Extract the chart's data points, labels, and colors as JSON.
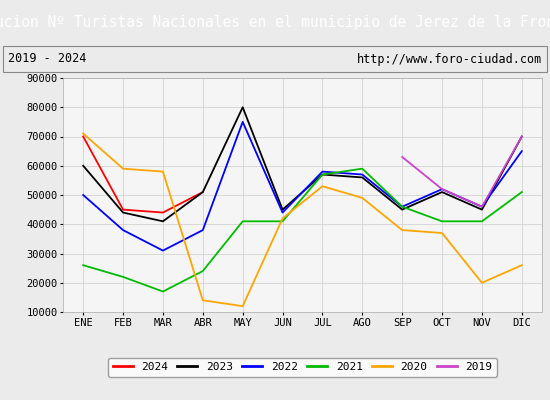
{
  "title": "Evolucion Nº Turistas Nacionales en el municipio de Jerez de la Frontera",
  "subtitle_left": "2019 - 2024",
  "subtitle_right": "http://www.foro-ciudad.com",
  "x_labels": [
    "ENE",
    "FEB",
    "MAR",
    "ABR",
    "MAY",
    "JUN",
    "JUL",
    "AGO",
    "SEP",
    "OCT",
    "NOV",
    "DIC"
  ],
  "ylim": [
    10000,
    90000
  ],
  "yticks": [
    10000,
    20000,
    30000,
    40000,
    50000,
    60000,
    70000,
    80000,
    90000
  ],
  "series": {
    "2024": {
      "color": "#ff0000",
      "data": [
        70000,
        45000,
        44000,
        51000,
        null,
        null,
        null,
        null,
        null,
        null,
        null,
        null
      ]
    },
    "2023": {
      "color": "#000000",
      "data": [
        60000,
        44000,
        41000,
        51000,
        80000,
        45000,
        57000,
        56000,
        45000,
        51000,
        45000,
        70000
      ]
    },
    "2022": {
      "color": "#0000ff",
      "data": [
        50000,
        38000,
        31000,
        38000,
        75000,
        44000,
        58000,
        57000,
        46000,
        52000,
        46000,
        65000
      ]
    },
    "2021": {
      "color": "#00bb00",
      "data": [
        26000,
        22000,
        17000,
        24000,
        41000,
        41000,
        57000,
        59000,
        46000,
        41000,
        41000,
        51000
      ]
    },
    "2020": {
      "color": "#ffa500",
      "data": [
        71000,
        59000,
        58000,
        14000,
        12000,
        42000,
        53000,
        49000,
        38000,
        37000,
        20000,
        26000
      ]
    },
    "2019": {
      "color": "#cc44cc",
      "data": [
        null,
        null,
        null,
        null,
        null,
        null,
        null,
        null,
        63000,
        52000,
        46000,
        70000
      ]
    }
  },
  "title_bg": "#4a90d9",
  "title_color": "#ffffff",
  "title_fontsize": 10.5,
  "subtitle_fontsize": 8.5,
  "axis_fontsize": 7.5,
  "background_color": "#ebebeb",
  "plot_bg": "#f5f5f5"
}
